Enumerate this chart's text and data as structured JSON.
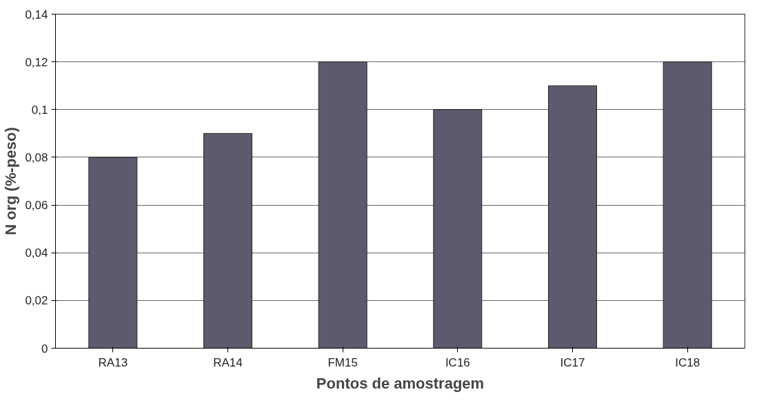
{
  "chart_data": {
    "type": "bar",
    "xlabel": "Pontos de amostragem",
    "ylabel": "N org (%-peso)",
    "categories": [
      "RA13",
      "RA14",
      "FM15",
      "IC16",
      "IC17",
      "IC18"
    ],
    "values": [
      0.08,
      0.09,
      0.12,
      0.1,
      0.11,
      0.12
    ],
    "color": "#5c5b6e",
    "ylim": [
      0,
      0.14
    ],
    "yticks": [
      {
        "value": 0,
        "label": "0"
      },
      {
        "value": 0.02,
        "label": "0,02"
      },
      {
        "value": 0.04,
        "label": "0,04"
      },
      {
        "value": 0.06,
        "label": "0,06"
      },
      {
        "value": 0.08,
        "label": "0,08"
      },
      {
        "value": 0.1,
        "label": "0,1"
      },
      {
        "value": 0.12,
        "label": "0,12"
      },
      {
        "value": 0.14,
        "label": "0,14"
      }
    ],
    "grid": "y"
  }
}
